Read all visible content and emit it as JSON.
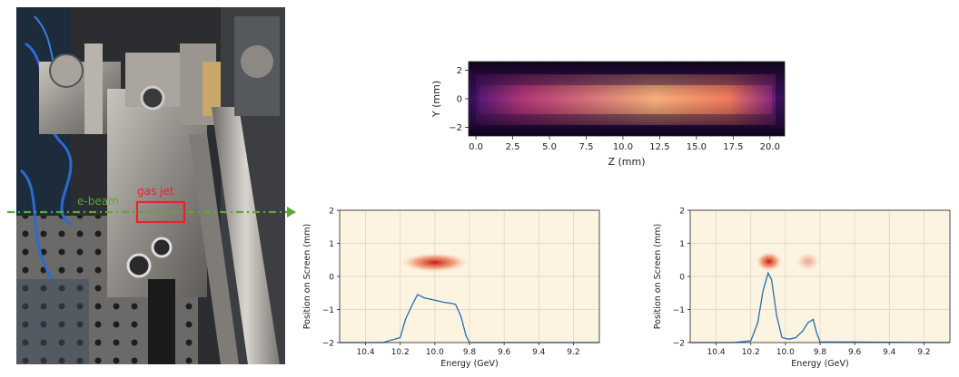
{
  "photo": {
    "beam_label": "e-beam",
    "jet_label": "gas jet",
    "beam_color": "#5aa83a",
    "jet_color": "#e8242a"
  },
  "plasma_image": {
    "xlabel": "Z (mm)",
    "ylabel": "Y (mm)",
    "xticks": [
      "0.0",
      "2.5",
      "5.0",
      "7.5",
      "10.0",
      "12.5",
      "15.0",
      "17.5",
      "20.0"
    ],
    "yticks": [
      "2",
      "0",
      "−2"
    ],
    "colormap": "magma"
  },
  "chart_data": [
    {
      "type": "heatmap",
      "xlabel": "Energy (GeV)",
      "ylabel": "Position on Screen (mm)",
      "xticks": [
        "10.4",
        "10.2",
        "10.0",
        "9.8",
        "9.6",
        "9.4",
        "9.2"
      ],
      "yticks": [
        "2",
        "1",
        "0",
        "−1",
        "−2"
      ],
      "xlim": [
        10.55,
        9.05
      ],
      "ylim": [
        -2,
        2
      ],
      "grid": true,
      "hotspots": [
        {
          "x1": 10.15,
          "x2": 9.85,
          "y": 0.42,
          "strength": 1.0
        }
      ],
      "line": {
        "x": [
          10.55,
          10.3,
          10.2,
          10.17,
          10.13,
          10.1,
          10.06,
          10.0,
          9.95,
          9.9,
          9.88,
          9.85,
          9.82,
          9.8,
          9.78,
          9.05
        ],
        "y": [
          -2.0,
          -2.0,
          -1.85,
          -1.3,
          -0.85,
          -0.55,
          -0.65,
          -0.72,
          -0.78,
          -0.82,
          -0.85,
          -1.2,
          -1.8,
          -2.0,
          -2.0,
          -2.0
        ]
      }
    },
    {
      "type": "heatmap",
      "xlabel": "Energy (GeV)",
      "ylabel": "Position on Screen (mm)",
      "xticks": [
        "10.4",
        "10.2",
        "10.0",
        "9.8",
        "9.6",
        "9.4",
        "9.2"
      ],
      "yticks": [
        "2",
        "1",
        "0",
        "−1",
        "−2"
      ],
      "xlim": [
        10.55,
        9.05
      ],
      "ylim": [
        -2,
        2
      ],
      "grid": true,
      "hotspots": [
        {
          "x1": 10.12,
          "x2": 10.07,
          "y": 0.45,
          "strength": 1.0
        },
        {
          "x1": 9.89,
          "x2": 9.85,
          "y": 0.45,
          "strength": 0.35
        }
      ],
      "line": {
        "x": [
          10.55,
          10.3,
          10.2,
          10.16,
          10.13,
          10.1,
          10.08,
          10.05,
          10.02,
          9.98,
          9.94,
          9.9,
          9.87,
          9.84,
          9.82,
          9.8,
          9.05
        ],
        "y": [
          -2.0,
          -2.0,
          -1.95,
          -1.4,
          -0.45,
          0.1,
          -0.1,
          -1.2,
          -1.85,
          -1.9,
          -1.85,
          -1.65,
          -1.4,
          -1.3,
          -1.7,
          -1.98,
          -2.0
        ]
      }
    }
  ]
}
